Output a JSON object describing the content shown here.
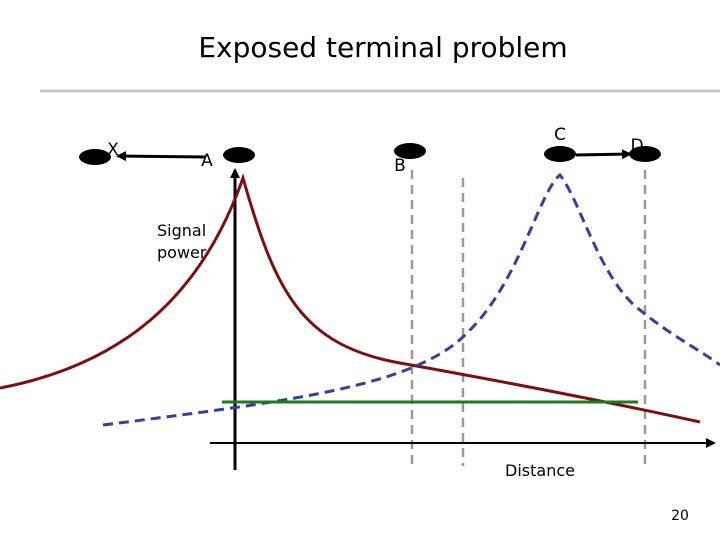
{
  "title": "Exposed terminal problem",
  "nodes": [
    {
      "label": "X"
    },
    {
      "label": "A"
    },
    {
      "label": "B"
    },
    {
      "label": "C"
    },
    {
      "label": "D"
    }
  ],
  "axes": {
    "y_label": [
      "Signal",
      "power"
    ],
    "x_label": "Distance"
  },
  "page_number": "20"
}
